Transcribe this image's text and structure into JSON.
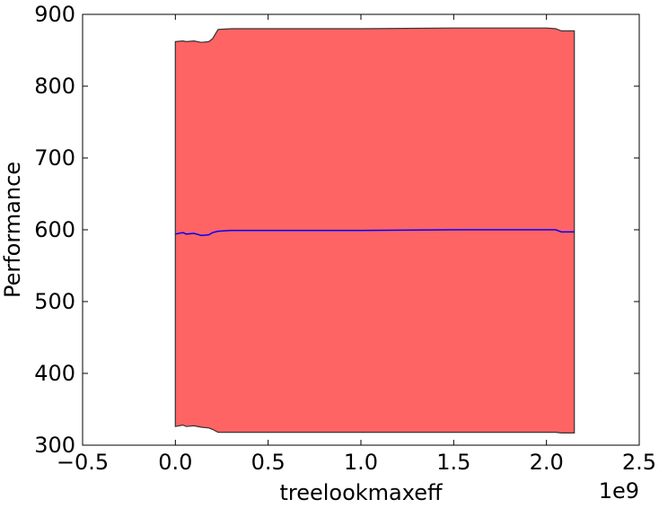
{
  "chart_data": {
    "type": "area",
    "xlabel": "treelookmaxeff",
    "ylabel": "Performance",
    "x_offset_label": "1e9",
    "x_scale": 1000000000,
    "xlim": [
      -0.5,
      2.5
    ],
    "ylim": [
      300,
      900
    ],
    "xticks": [
      -0.5,
      0.0,
      0.5,
      1.0,
      1.5,
      2.0,
      2.5
    ],
    "xtick_labels": [
      "−0.5",
      "0.0",
      "0.5",
      "1.0",
      "1.5",
      "2.0",
      "2.5"
    ],
    "yticks": [
      300,
      400,
      500,
      600,
      700,
      800,
      900
    ],
    "ytick_labels": [
      "300",
      "400",
      "500",
      "600",
      "700",
      "800",
      "900"
    ],
    "grid": false,
    "band_color": "#ff6464",
    "line_color": "#0000ff",
    "series": [
      {
        "kind": "mean",
        "x": [
          0.0,
          0.04,
          0.06,
          0.1,
          0.14,
          0.18,
          0.2,
          0.23,
          0.3,
          0.5,
          1.0,
          1.5,
          2.0,
          2.05,
          2.08,
          2.15
        ],
        "y": [
          594,
          596,
          594,
          595,
          592,
          593,
          596,
          598,
          599,
          599,
          599,
          600,
          600,
          600,
          597,
          597
        ]
      },
      {
        "kind": "upper",
        "x": [
          0.0,
          0.04,
          0.06,
          0.1,
          0.14,
          0.18,
          0.2,
          0.23,
          0.3,
          0.5,
          1.0,
          1.5,
          2.0,
          2.05,
          2.08,
          2.15
        ],
        "y": [
          862,
          863,
          862,
          863,
          861,
          862,
          866,
          879,
          880,
          880,
          880,
          881,
          881,
          880,
          877,
          877
        ]
      },
      {
        "kind": "lower",
        "x": [
          0.0,
          0.04,
          0.06,
          0.1,
          0.14,
          0.18,
          0.2,
          0.23,
          0.3,
          0.5,
          1.0,
          1.5,
          2.0,
          2.05,
          2.08,
          2.15
        ],
        "y": [
          326,
          328,
          326,
          327,
          325,
          324,
          322,
          318,
          318,
          318,
          318,
          318,
          318,
          318,
          317,
          317
        ]
      }
    ]
  }
}
